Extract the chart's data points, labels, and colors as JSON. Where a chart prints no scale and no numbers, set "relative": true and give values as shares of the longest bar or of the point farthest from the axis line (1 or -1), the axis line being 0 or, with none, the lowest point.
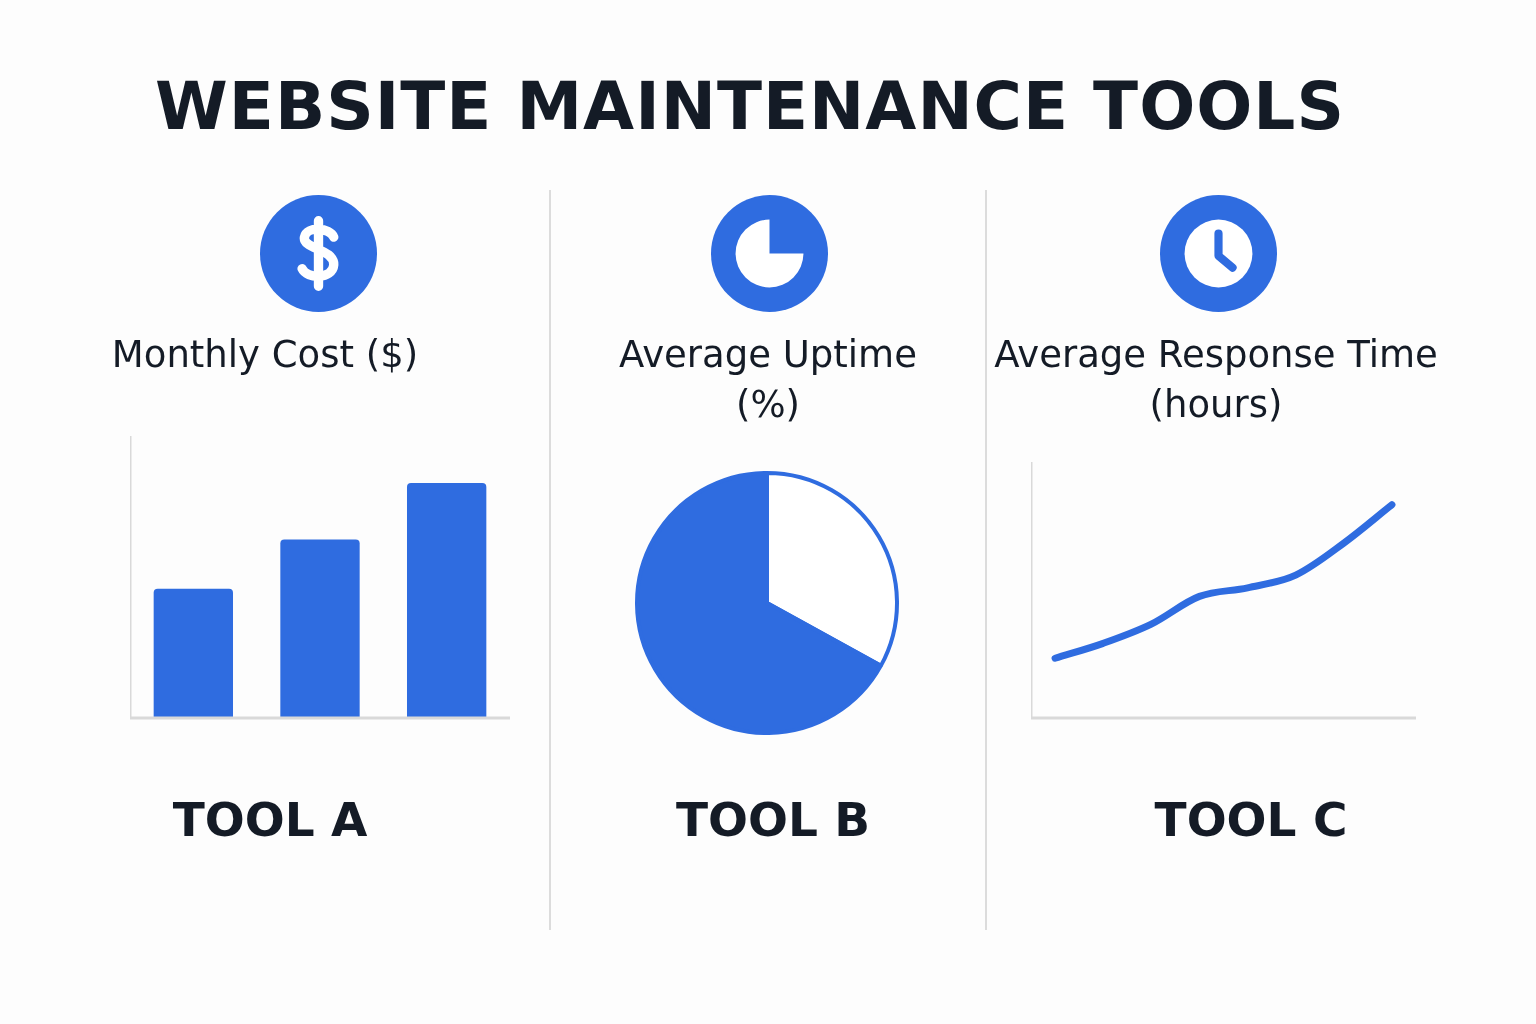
{
  "chart_data": [
    {
      "type": "other",
      "title": "WEBSITE MAINTENANCE TOOLS"
    },
    {
      "type": "bar",
      "title": "Monthly Cost ($)",
      "xlabel": "TOOL A",
      "categories": [
        null,
        null,
        null
      ],
      "values": [
        0.55,
        0.76,
        1
      ],
      "color": "#2f6ce0",
      "relative": true
    },
    {
      "type": "pie",
      "title": "Average Uptime (%)",
      "xlabel": "TOOL B",
      "categories": [
        null,
        null
      ],
      "values": [
        33,
        67
      ],
      "colors": [
        "#ffffff",
        "#2f6ce0"
      ]
    },
    {
      "type": "line",
      "title": "Average Response Time (hours)",
      "xlabel": "TOOL C",
      "categories": [
        null,
        null,
        null,
        null,
        null,
        null,
        null,
        null
      ],
      "values": [
        0.28,
        0.35,
        0.44,
        0.57,
        0.61,
        0.67,
        0.82,
        1
      ],
      "color": "#2f6ce0",
      "relative": true,
      "marker": "none",
      "line_style": "solid"
    }
  ]
}
